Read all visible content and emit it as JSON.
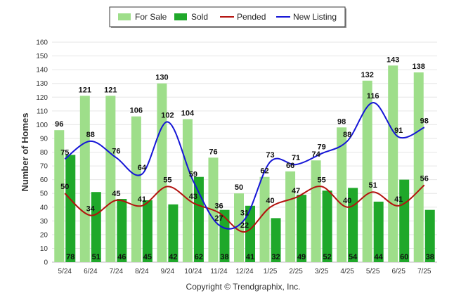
{
  "chart_data": {
    "type": "bar",
    "categories": [
      "5/24",
      "6/24",
      "7/24",
      "8/24",
      "9/24",
      "10/24",
      "11/24",
      "12/24",
      "1/25",
      "2/25",
      "3/25",
      "4/25",
      "5/25",
      "6/25",
      "7/25"
    ],
    "series": [
      {
        "name": "For Sale",
        "type": "bar",
        "color": "#9ede8a",
        "values": [
          96,
          121,
          121,
          106,
          130,
          104,
          76,
          50,
          62,
          66,
          74,
          98,
          132,
          143,
          138
        ]
      },
      {
        "name": "Sold",
        "type": "bar",
        "color": "#1fa82a",
        "values": [
          78,
          51,
          46,
          45,
          42,
          62,
          38,
          41,
          32,
          49,
          52,
          54,
          44,
          60,
          38
        ]
      },
      {
        "name": "Pended",
        "type": "line",
        "color": "#b3120e",
        "values": [
          50,
          34,
          45,
          41,
          55,
          43,
          36,
          22,
          40,
          47,
          55,
          40,
          51,
          41,
          56
        ]
      },
      {
        "name": "New Listing",
        "type": "line",
        "color": "#1515d6",
        "values": [
          75,
          88,
          76,
          64,
          102,
          59,
          27,
          31,
          73,
          71,
          79,
          88,
          116,
          91,
          98
        ]
      }
    ],
    "ylabel": "Number of Homes",
    "ylim": [
      0,
      160
    ],
    "yticks": [
      0,
      10,
      20,
      30,
      40,
      50,
      60,
      70,
      80,
      90,
      100,
      110,
      120,
      130,
      140,
      150,
      160
    ],
    "grid": true,
    "legend_position": "top-center"
  },
  "copyright": "Copyright © Trendgraphix, Inc."
}
